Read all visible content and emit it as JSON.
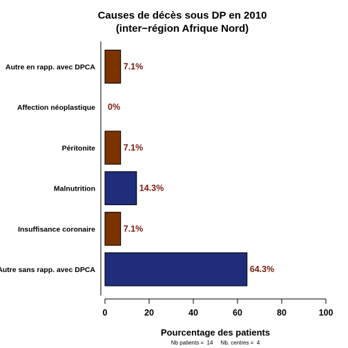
{
  "colors": {
    "brown": "#7B3300",
    "blue": "#1F2D7B",
    "value_label": "#7B1A12",
    "axis": "#000000"
  },
  "chart_data": {
    "type": "bar",
    "orientation": "horizontal",
    "title": "Causes de décès sous DP en 2010",
    "subtitle": "(inter−région Afrique Nord)",
    "xlabel": "Pourcentage des patients",
    "ylabel": "",
    "xlim": [
      0,
      100
    ],
    "x_ticks": [
      "0",
      "20",
      "40",
      "60",
      "80",
      "100"
    ],
    "grid": false,
    "legend": "none",
    "bars": [
      {
        "category": "Autre en rapp. avec DPCA",
        "value": 7.1,
        "label": "7.1%",
        "color": "brown"
      },
      {
        "category": "Affection néoplastique",
        "value": 0,
        "label": "0%",
        "color": "brown"
      },
      {
        "category": "Péritonite",
        "value": 7.1,
        "label": "7.1%",
        "color": "brown"
      },
      {
        "category": "Malnutrition",
        "value": 14.3,
        "label": "14.3%",
        "color": "blue"
      },
      {
        "category": "Insuffisance coronaire",
        "value": 7.1,
        "label": "7.1%",
        "color": "brown"
      },
      {
        "category": "Autre sans rapp. avec DPCA",
        "value": 64.3,
        "label": "64.3%",
        "color": "blue"
      }
    ],
    "footnote": "Nb patients =  14     Nb. centres =  4"
  }
}
